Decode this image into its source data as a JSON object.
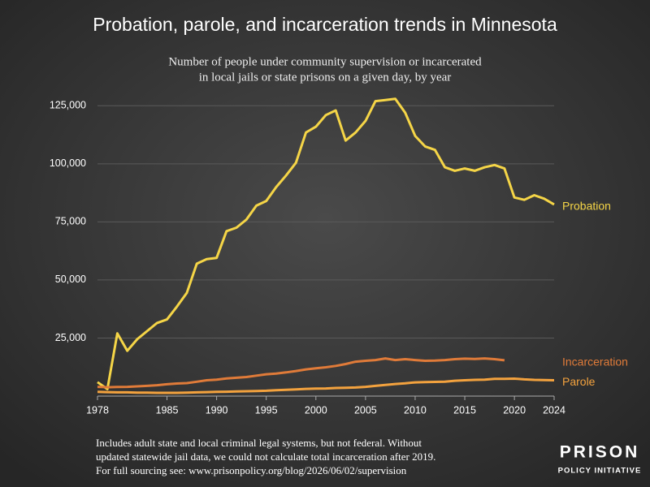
{
  "chart_data": {
    "type": "line",
    "title": "Probation, parole, and incarceration trends in Minnesota",
    "subtitle": [
      "Number of people under community supervision or incarcerated",
      "in local jails or state prisons on a given day, by year"
    ],
    "x": [
      1978,
      1979,
      1980,
      1981,
      1982,
      1983,
      1984,
      1985,
      1986,
      1987,
      1988,
      1989,
      1990,
      1991,
      1992,
      1993,
      1994,
      1995,
      1996,
      1997,
      1998,
      1999,
      2000,
      2001,
      2002,
      2003,
      2004,
      2005,
      2006,
      2007,
      2008,
      2009,
      2010,
      2011,
      2012,
      2013,
      2014,
      2015,
      2016,
      2017,
      2018,
      2019,
      2020,
      2021,
      2022,
      2023,
      2024
    ],
    "series": [
      {
        "name": "Probation",
        "color": "#f5d547",
        "values": [
          6000,
          3000,
          27000,
          19500,
          24500,
          28000,
          31500,
          33000,
          38500,
          44500,
          57000,
          59000,
          59500,
          71000,
          72500,
          76000,
          82000,
          84000,
          90000,
          95000,
          100500,
          113500,
          116000,
          121000,
          123000,
          110000,
          113500,
          118500,
          127000,
          127500,
          128000,
          122000,
          112000,
          107500,
          106000,
          98500,
          97000,
          98000,
          97000,
          98500,
          99500,
          98000,
          85500,
          84500,
          86500,
          85000,
          82500
        ]
      },
      {
        "name": "Incarceration",
        "color": "#e07b39",
        "values": [
          4000,
          3800,
          3900,
          4000,
          4200,
          4400,
          4700,
          5100,
          5400,
          5600,
          6200,
          6800,
          7100,
          7600,
          7900,
          8200,
          8800,
          9400,
          9700,
          10200,
          10800,
          11500,
          12000,
          12400,
          13000,
          13800,
          14800,
          15200,
          15500,
          16200,
          15500,
          15900,
          15500,
          15200,
          15300,
          15500,
          15900,
          16100,
          16000,
          16200,
          15900,
          15400,
          null,
          null,
          null,
          null,
          null
        ]
      },
      {
        "name": "Parole",
        "color": "#f3a23e",
        "values": [
          1800,
          1700,
          1600,
          1600,
          1500,
          1500,
          1400,
          1400,
          1400,
          1500,
          1600,
          1700,
          1800,
          1900,
          2000,
          2100,
          2200,
          2300,
          2500,
          2700,
          2900,
          3100,
          3200,
          3300,
          3500,
          3600,
          3700,
          4000,
          4400,
          4800,
          5200,
          5500,
          5900,
          6000,
          6100,
          6200,
          6600,
          6800,
          7000,
          7100,
          7400,
          7400,
          7500,
          7200,
          7000,
          6900,
          6800
        ]
      }
    ],
    "xlim": [
      1978,
      2024
    ],
    "xticks": [
      1978,
      1985,
      1990,
      1995,
      2000,
      2005,
      2010,
      2015,
      2020,
      2024
    ],
    "ylim": [
      0,
      130000
    ],
    "yticks": [
      {
        "value": 25000,
        "label": "25,000"
      },
      {
        "value": 50000,
        "label": "50,000"
      },
      {
        "value": 75000,
        "label": "75,000"
      },
      {
        "value": 100000,
        "label": "100,000"
      },
      {
        "value": 125000,
        "label": "125,000"
      }
    ],
    "grid": true,
    "notes": [
      "Includes adult state and local criminal legal systems, but not federal. Without",
      "updated statewide jail data, we could not calculate total incarceration after 2019.",
      "For full sourcing see: www.prisonpolicy.org/blog/2026/06/02/supervision"
    ],
    "logo": [
      "PRISON",
      "POLICY INITIATIVE"
    ]
  }
}
